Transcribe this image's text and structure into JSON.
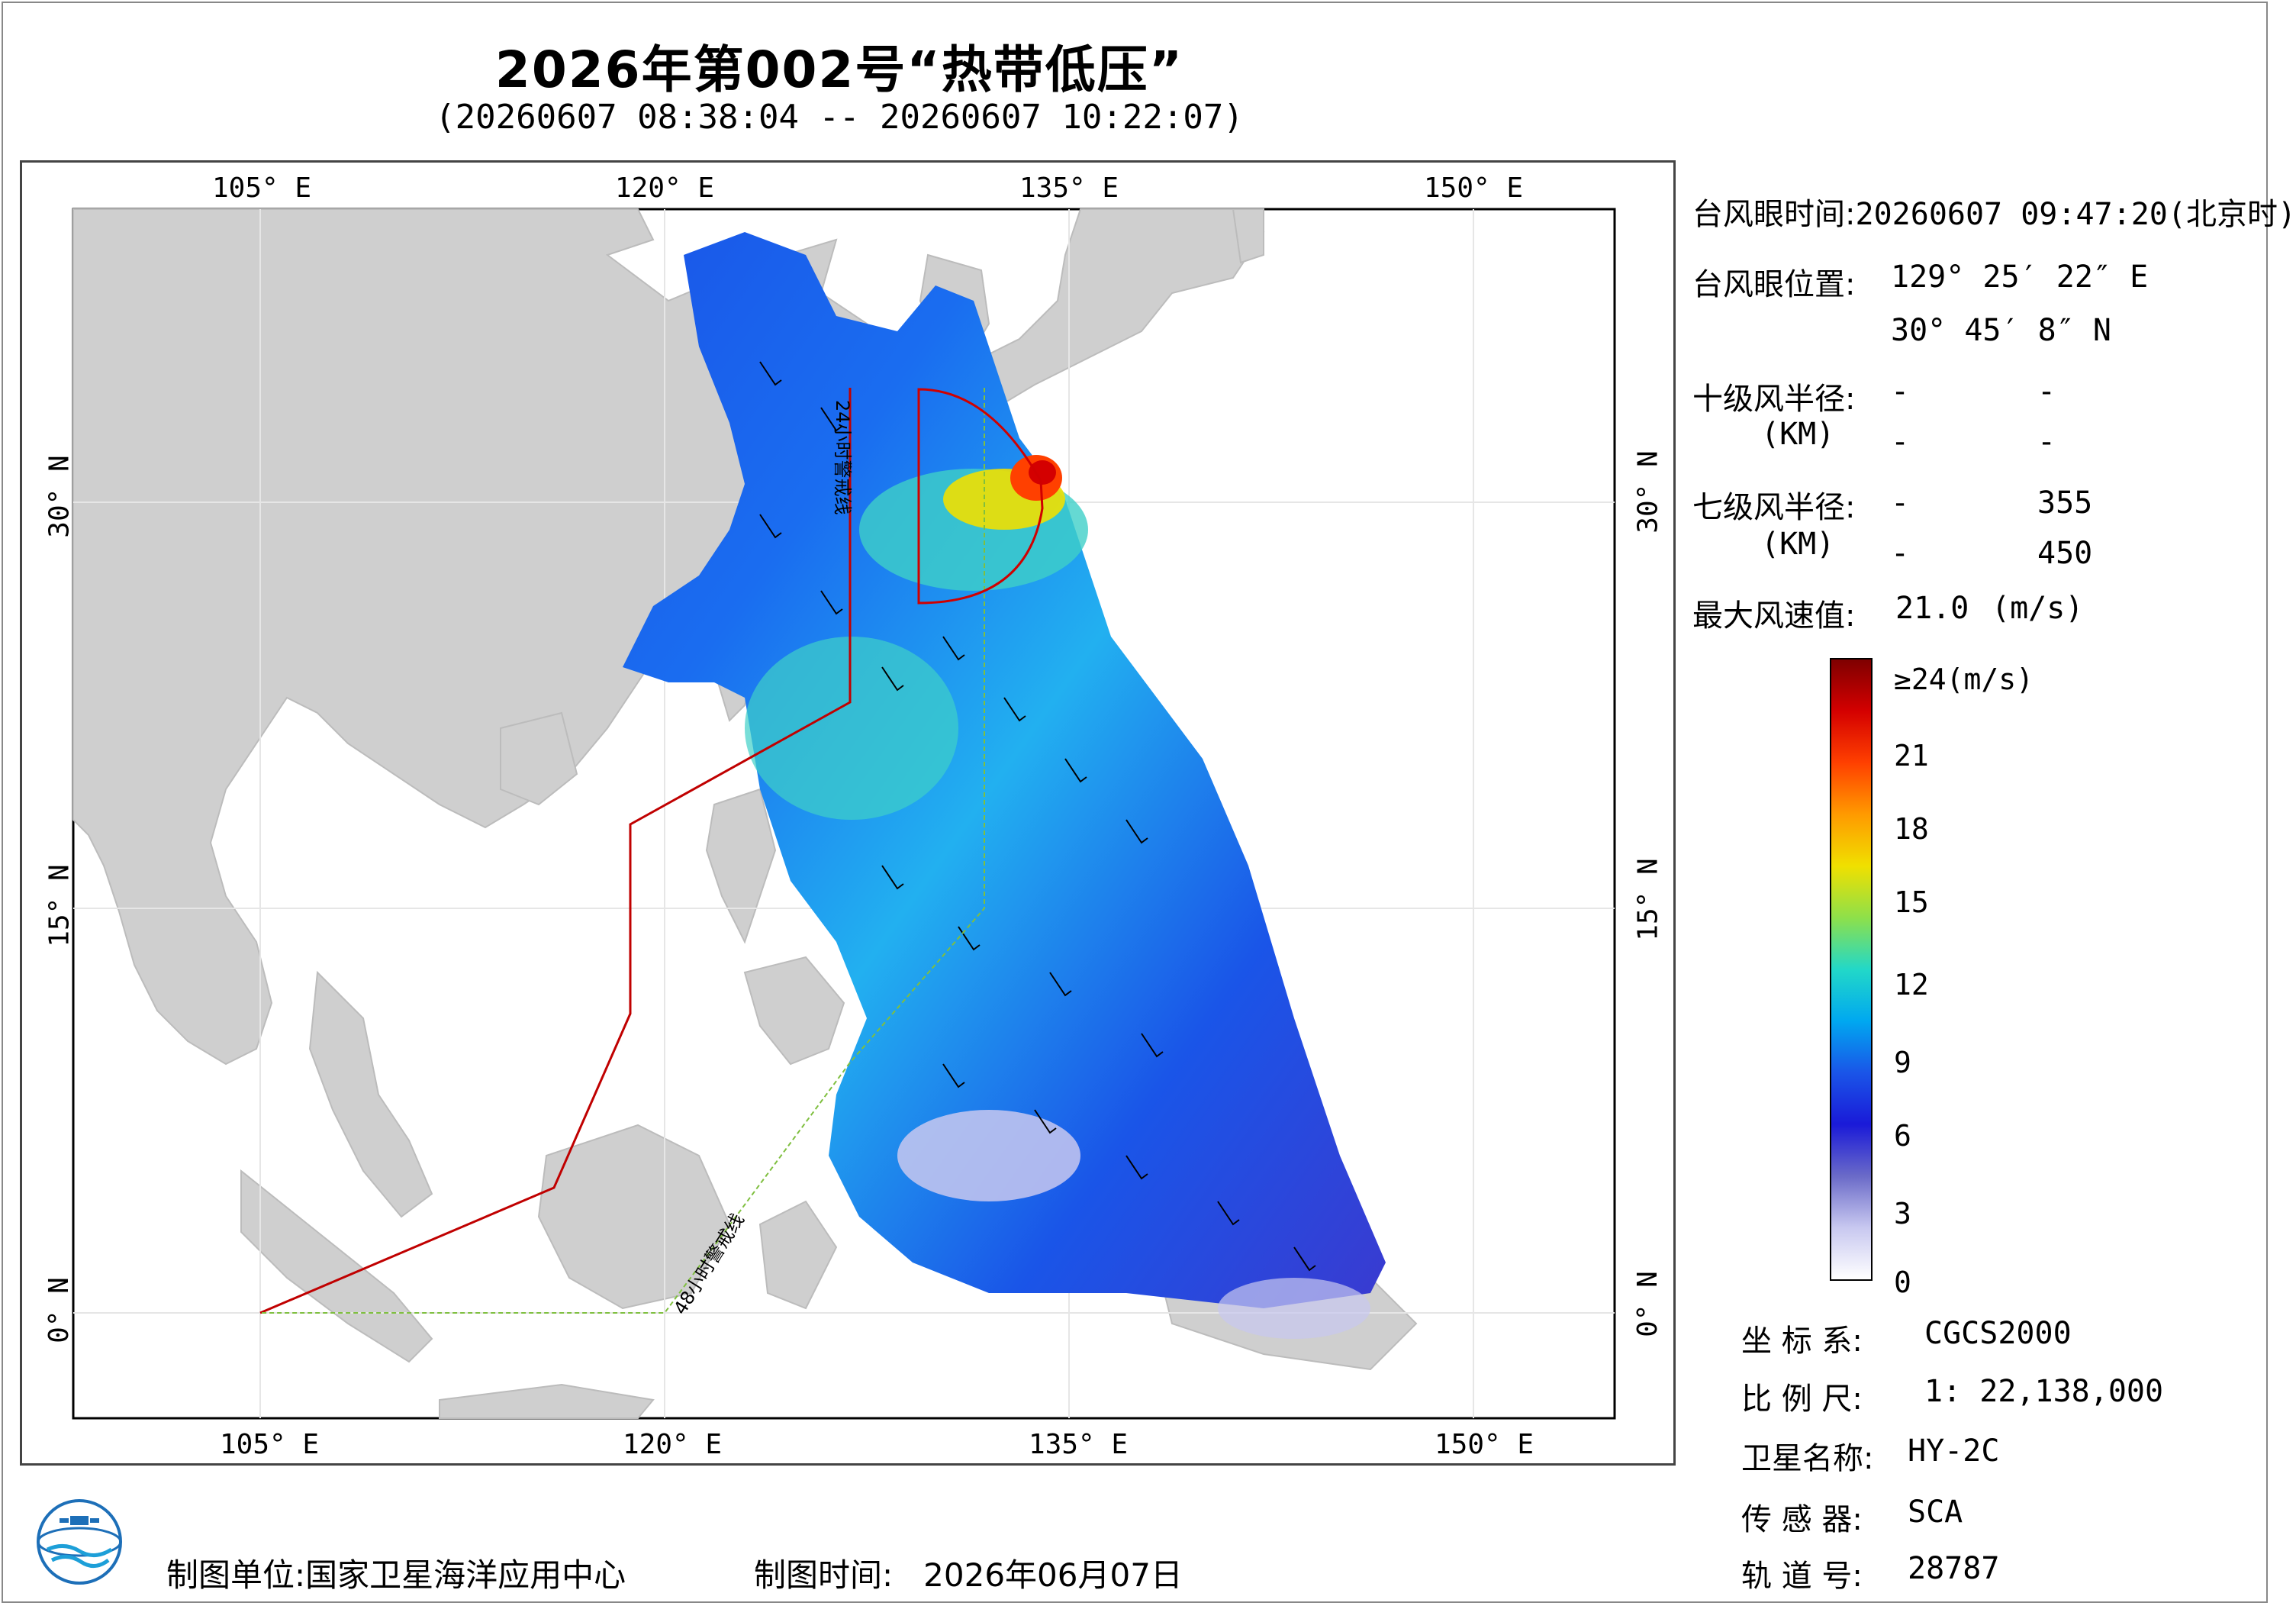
{
  "title": "2026年第002号“热带低压”",
  "subtitle": "(20260607 08:38:04 -- 20260607 10:22:07)",
  "map": {
    "lon_ticks_top": [
      "105° E",
      "120° E",
      "135° E",
      "150° E"
    ],
    "lon_ticks_bottom": [
      "105° E",
      "120° E",
      "135° E",
      "150° E"
    ],
    "lat_ticks_left": [
      "30° N",
      "15° N",
      "0° N"
    ],
    "lat_ticks_right": [
      "30° N",
      "15° N",
      "0° N"
    ],
    "warning_24h_label": "24小时警戒线",
    "warning_48h_label": "48小时警戒线",
    "colors": {
      "land": "#cfcfcf",
      "sea": "#ffffff",
      "warning_24h": "#c00000",
      "warning_48h": "#7fbf3f",
      "wind_radius": "#d00000"
    }
  },
  "info": {
    "eye_time_label": "台风眼时间:",
    "eye_time_value": "20260607 09:47:20(北京时)",
    "eye_pos_label": "台风眼位置:",
    "eye_lon": "129° 25′ 22″ E",
    "eye_lat": "30° 45′ 8″ N",
    "r10_label": "十级风半径:",
    "r10_unit": "(KM)",
    "r10_values": [
      "-",
      "-",
      "-",
      "-"
    ],
    "r7_label": "七级风半径:",
    "r7_unit": "(KM)",
    "r7_values": [
      "-",
      "355",
      "-",
      "450"
    ],
    "max_wind_label": "最大风速值:",
    "max_wind_value": "21.0",
    "max_wind_unit": "(m/s)"
  },
  "colorbar": {
    "labels": [
      "≥24(m/s)",
      "21",
      "18",
      "15",
      "12",
      "9",
      "6",
      "3",
      "0"
    ],
    "stops": [
      "#7f0000",
      "#d40000",
      "#ff4000",
      "#ff9a00",
      "#f0e000",
      "#8ee04a",
      "#22d8c8",
      "#00a8f0",
      "#1a55e8",
      "#1a1ad8",
      "#6a6ac8",
      "#c8c8f0",
      "#ffffff"
    ]
  },
  "meta": {
    "crs_label": "坐 标 系:",
    "crs_value": "CGCS2000",
    "scale_label": "比 例 尺:",
    "scale_value": "1: 22,138,000",
    "satellite_label": "卫星名称:",
    "satellite_value": "HY-2C",
    "sensor_label": "传 感 器:",
    "sensor_value": "SCA",
    "orbit_label": "轨 道 号:",
    "orbit_value": "28787"
  },
  "footer": {
    "org_label": "制图单位:",
    "org_value": "国家卫星海洋应用中心",
    "date_label": "制图时间:",
    "date_value": "2026年06月07日"
  }
}
